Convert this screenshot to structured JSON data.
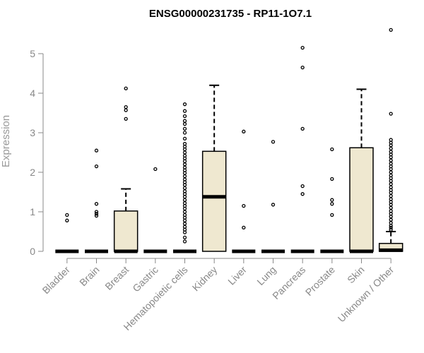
{
  "chart_data": {
    "type": "boxplot",
    "title": "ENSG00000231735 - RP11-1O7.1",
    "xlabel": "",
    "ylabel": "Expression",
    "ylim": [
      0,
      5.8
    ],
    "yticks": [
      0,
      1,
      2,
      3,
      4,
      5
    ],
    "grid": false,
    "legend": "none",
    "box_fill": "#efe8d0",
    "categories": [
      "Bladder",
      "Brain",
      "Breast",
      "Gastric",
      "Hematopoietic cells",
      "Kidney",
      "Liver",
      "Lung",
      "Pancreas",
      "Prostate",
      "Skin",
      "Unknown / Other"
    ],
    "boxes": [
      {
        "q1": 0,
        "median": 0,
        "q3": 0,
        "whisker_low": 0,
        "whisker_high": 0,
        "outliers": [
          0.78,
          0.92
        ]
      },
      {
        "q1": 0,
        "median": 0,
        "q3": 0,
        "whisker_low": 0,
        "whisker_high": 0,
        "outliers": [
          0.9,
          0.95,
          1.0,
          1.2,
          2.15,
          2.55
        ]
      },
      {
        "q1": 0,
        "median": 0,
        "q3": 1.02,
        "whisker_low": 0,
        "whisker_high": 1.58,
        "outliers": [
          3.35,
          3.57,
          3.65,
          4.12
        ]
      },
      {
        "q1": 0,
        "median": 0,
        "q3": 0,
        "whisker_low": 0,
        "whisker_high": 0,
        "outliers": [
          2.08
        ]
      },
      {
        "q1": 0,
        "median": 0,
        "q3": 0,
        "whisker_low": 0,
        "whisker_high": 0,
        "outliers": [
          0.25,
          0.35,
          0.48,
          0.55,
          0.62,
          0.7,
          0.78,
          0.85,
          0.92,
          1.0,
          1.08,
          1.15,
          1.22,
          1.3,
          1.38,
          1.45,
          1.52,
          1.6,
          1.68,
          1.75,
          1.82,
          1.9,
          1.98,
          2.05,
          2.12,
          2.2,
          2.28,
          2.35,
          2.42,
          2.5,
          2.58,
          2.65,
          2.72,
          2.85,
          3.0,
          3.1,
          3.22,
          3.3,
          3.42,
          3.55,
          3.72
        ]
      },
      {
        "q1": 0,
        "median": 1.38,
        "q3": 2.53,
        "whisker_low": 0,
        "whisker_high": 4.2,
        "outliers": []
      },
      {
        "q1": 0,
        "median": 0,
        "q3": 0,
        "whisker_low": 0,
        "whisker_high": 0,
        "outliers": [
          0.6,
          1.15,
          3.03
        ]
      },
      {
        "q1": 0,
        "median": 0,
        "q3": 0,
        "whisker_low": 0,
        "whisker_high": 0,
        "outliers": [
          1.18,
          2.77
        ]
      },
      {
        "q1": 0,
        "median": 0,
        "q3": 0,
        "whisker_low": 0,
        "whisker_high": 0,
        "outliers": [
          1.45,
          1.65,
          3.1,
          4.65,
          5.15
        ]
      },
      {
        "q1": 0,
        "median": 0,
        "q3": 0,
        "whisker_low": 0,
        "whisker_high": 0,
        "outliers": [
          0.92,
          1.2,
          1.3,
          1.83,
          2.58
        ]
      },
      {
        "q1": 0,
        "median": 0,
        "q3": 2.62,
        "whisker_low": 0,
        "whisker_high": 4.1,
        "outliers": []
      },
      {
        "q1": 0,
        "median": 0.03,
        "q3": 0.2,
        "whisker_low": 0,
        "whisker_high": 0.5,
        "outliers": [
          0.55,
          0.6,
          0.65,
          0.72,
          0.8,
          0.88,
          0.95,
          1.02,
          1.1,
          1.18,
          1.25,
          1.32,
          1.4,
          1.48,
          1.55,
          1.62,
          1.7,
          1.78,
          1.85,
          1.92,
          2.0,
          2.08,
          2.15,
          2.22,
          2.3,
          2.38,
          2.45,
          2.52,
          2.6,
          2.68,
          2.75,
          2.82,
          3.48,
          5.6
        ]
      }
    ]
  }
}
